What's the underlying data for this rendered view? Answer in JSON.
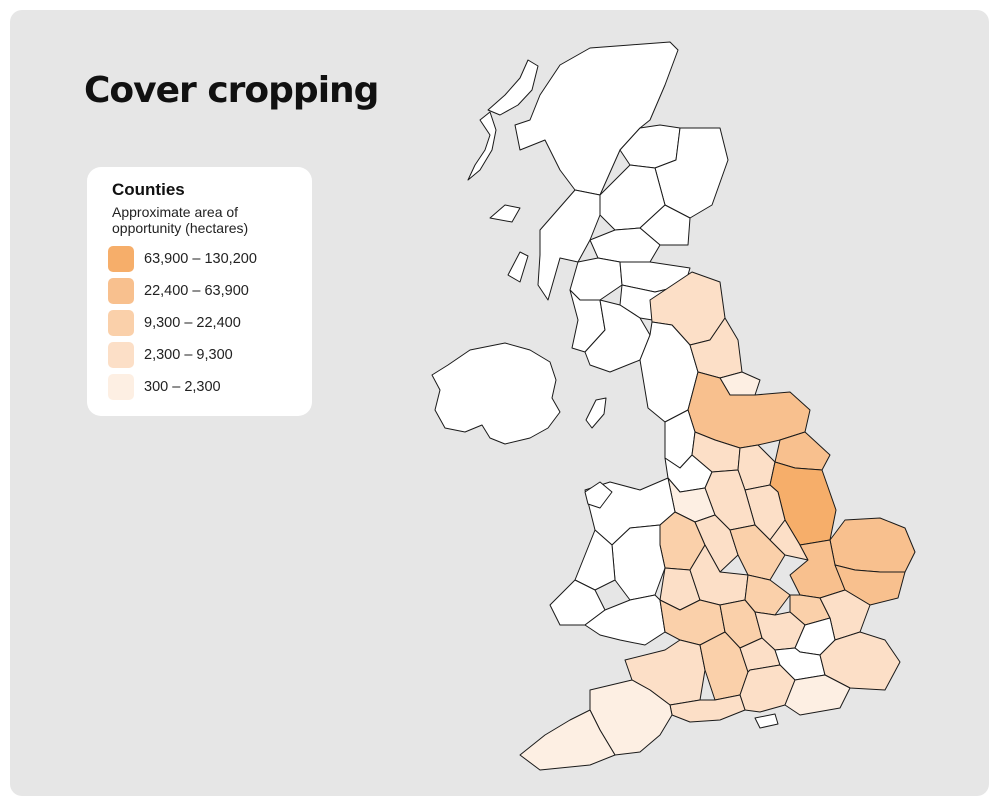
{
  "title": "Cover cropping",
  "legend": {
    "heading": "Counties",
    "subtitle": "Approximate area of opportunity (hectares)",
    "items": [
      {
        "label": "63,900 – 130,200",
        "color": "#f6ae6a"
      },
      {
        "label": "22,400 – 63,900",
        "color": "#f8c08e"
      },
      {
        "label": "9,300 – 22,400",
        "color": "#fad0aa"
      },
      {
        "label": "2,300 – 9,300",
        "color": "#fcdfc7"
      },
      {
        "label": "300 – 2,300",
        "color": "#fdefe3"
      }
    ]
  },
  "colors": {
    "background": "#e6e6e6",
    "no_data": "#ffffff",
    "border": "#1a1a1a"
  }
}
